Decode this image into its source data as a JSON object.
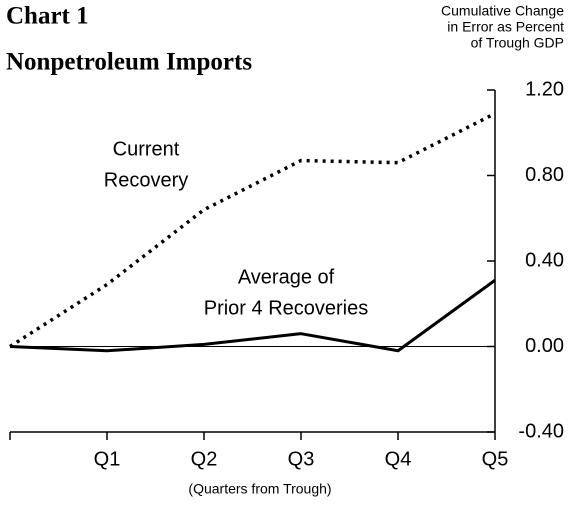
{
  "chart_data": {
    "type": "line",
    "title": "Chart 1",
    "subtitle": "Nonpetroleum Imports",
    "ylabel": [
      "Cumulative Change",
      "in Error as Percent",
      "of Trough GDP"
    ],
    "xlabel": "(Quarters from Trough)",
    "categories": [
      null,
      "Q1",
      "Q2",
      "Q3",
      "Q4",
      "Q5"
    ],
    "series": [
      {
        "label": [
          "Current",
          "Recovery"
        ],
        "color": "#000000",
        "style": "dotted",
        "values": [
          0,
          0.29,
          0.64,
          0.87,
          0.86,
          1.09
        ]
      },
      {
        "label": [
          "Average of",
          "Prior 4 Recoveries"
        ],
        "color": "#000000",
        "style": "solid",
        "values": [
          0,
          -0.02,
          0.01,
          0.06,
          -0.02,
          0.31
        ]
      }
    ],
    "ylim": [
      -0.4,
      1.2
    ],
    "yticks": [
      {
        "value": -0.4,
        "label": "-0.40"
      },
      {
        "value": 0,
        "label": "0.00"
      },
      {
        "value": 0.4,
        "label": "0.40"
      },
      {
        "value": 0.8,
        "label": "0.80"
      },
      {
        "value": 1.2,
        "label": "1.20"
      }
    ],
    "zero_line": true
  }
}
